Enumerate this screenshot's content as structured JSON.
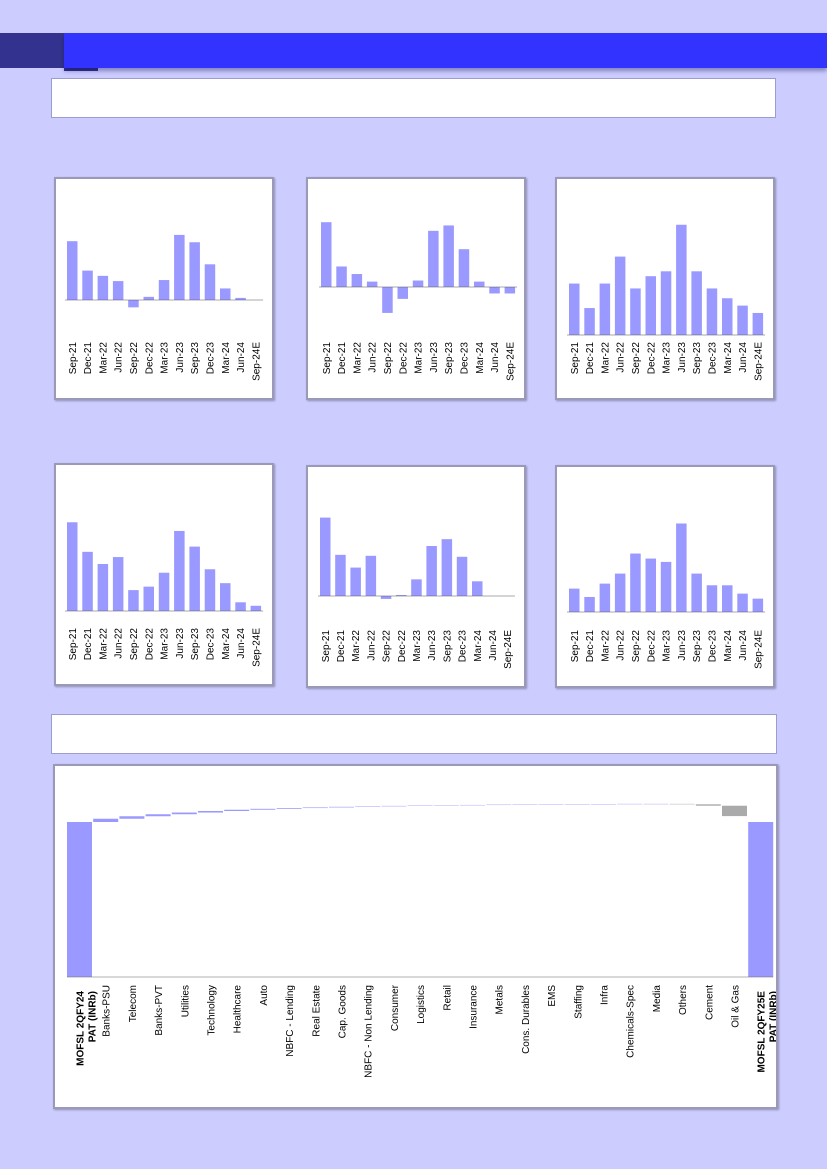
{
  "colors": {
    "bar": "#9999ff",
    "negative_bar": "#aaaaaa",
    "banner": "#3333ff",
    "banner_tab": "#33338f",
    "background": "#ccccff"
  },
  "chart_data": [
    {
      "type": "bar",
      "categories": [
        "Sep-21",
        "Dec-21",
        "Mar-22",
        "Jun-22",
        "Sep-22",
        "Dec-22",
        "Mar-23",
        "Jun-23",
        "Sep-23",
        "Dec-23",
        "Mar-24",
        "Jun-24",
        "Sep-24E"
      ],
      "values": [
        56,
        28,
        23,
        18,
        -7,
        3,
        19,
        62,
        55,
        34,
        11,
        2,
        0
      ]
    },
    {
      "type": "bar",
      "categories": [
        "Sep-21",
        "Dec-21",
        "Mar-22",
        "Jun-22",
        "Sep-22",
        "Dec-22",
        "Mar-23",
        "Jun-23",
        "Sep-23",
        "Dec-23",
        "Mar-24",
        "Jun-24",
        "Sep-24E"
      ],
      "values": [
        60,
        19,
        12,
        5,
        -24,
        -11,
        6,
        52,
        57,
        35,
        5,
        -6,
        -6
      ]
    },
    {
      "type": "bar",
      "categories": [
        "Sep-21",
        "Dec-21",
        "Mar-22",
        "Jun-22",
        "Sep-22",
        "Dec-22",
        "Mar-23",
        "Jun-23",
        "Sep-23",
        "Dec-23",
        "Mar-24",
        "Jun-24",
        "Sep-24E"
      ],
      "values": [
        21,
        11,
        21,
        32,
        19,
        24,
        26,
        45,
        26,
        19,
        15,
        12,
        9
      ]
    },
    {
      "type": "bar",
      "categories": [
        "Sep-21",
        "Dec-21",
        "Mar-22",
        "Jun-22",
        "Sep-22",
        "Dec-22",
        "Mar-23",
        "Jun-23",
        "Sep-23",
        "Dec-23",
        "Mar-24",
        "Jun-24",
        "Sep-24E"
      ],
      "values": [
        51,
        34,
        27,
        31,
        12,
        14,
        22,
        46,
        37,
        24,
        16,
        5,
        3
      ]
    },
    {
      "type": "bar",
      "categories": [
        "Sep-21",
        "Dec-21",
        "Mar-22",
        "Jun-22",
        "Sep-22",
        "Dec-22",
        "Mar-23",
        "Jun-23",
        "Sep-23",
        "Dec-23",
        "Mar-24",
        "Jun-24",
        "Sep-24E"
      ],
      "values": [
        80,
        42,
        29,
        41,
        -3,
        1,
        17,
        51,
        58,
        40,
        15,
        0,
        0
      ]
    },
    {
      "type": "bar",
      "categories": [
        "Sep-21",
        "Dec-21",
        "Mar-22",
        "Jun-22",
        "Sep-22",
        "Dec-22",
        "Mar-23",
        "Jun-23",
        "Sep-23",
        "Dec-23",
        "Mar-24",
        "Jun-24",
        "Sep-24E"
      ],
      "values": [
        14,
        9,
        17,
        23,
        35,
        32,
        30,
        53,
        23,
        16,
        16,
        11,
        8
      ]
    },
    {
      "type": "waterfall",
      "categories": [
        "MOFSL 2QFY24 PAT (INRb)",
        "Banks-PSU",
        "Telecom",
        "Banks-PVT",
        "Utilities",
        "Technology",
        "Healthcare",
        "Auto",
        "NBFC - Lending",
        "Real Estate",
        "Cap. Goods",
        "NBFC - Non Lending",
        "Consumer",
        "Logistics",
        "Retail",
        "Insurance",
        "Metals",
        "Cons. Durables",
        "EMS",
        "Staffing",
        "Infra",
        "Chemicals-Spec",
        "Media",
        "Others",
        "Cement",
        "Oil & Gas",
        "MOFSL 2QFY25E PAT (INRb)"
      ],
      "values": [
        1000,
        21,
        16,
        13,
        11,
        10,
        8,
        6,
        5,
        4,
        4,
        3,
        3,
        2,
        2,
        2,
        2,
        1,
        1,
        1,
        1,
        1,
        0,
        -3,
        -9,
        -67,
        1000
      ],
      "totals": [
        0,
        26
      ],
      "highlight_labels": [
        0,
        26
      ]
    }
  ]
}
